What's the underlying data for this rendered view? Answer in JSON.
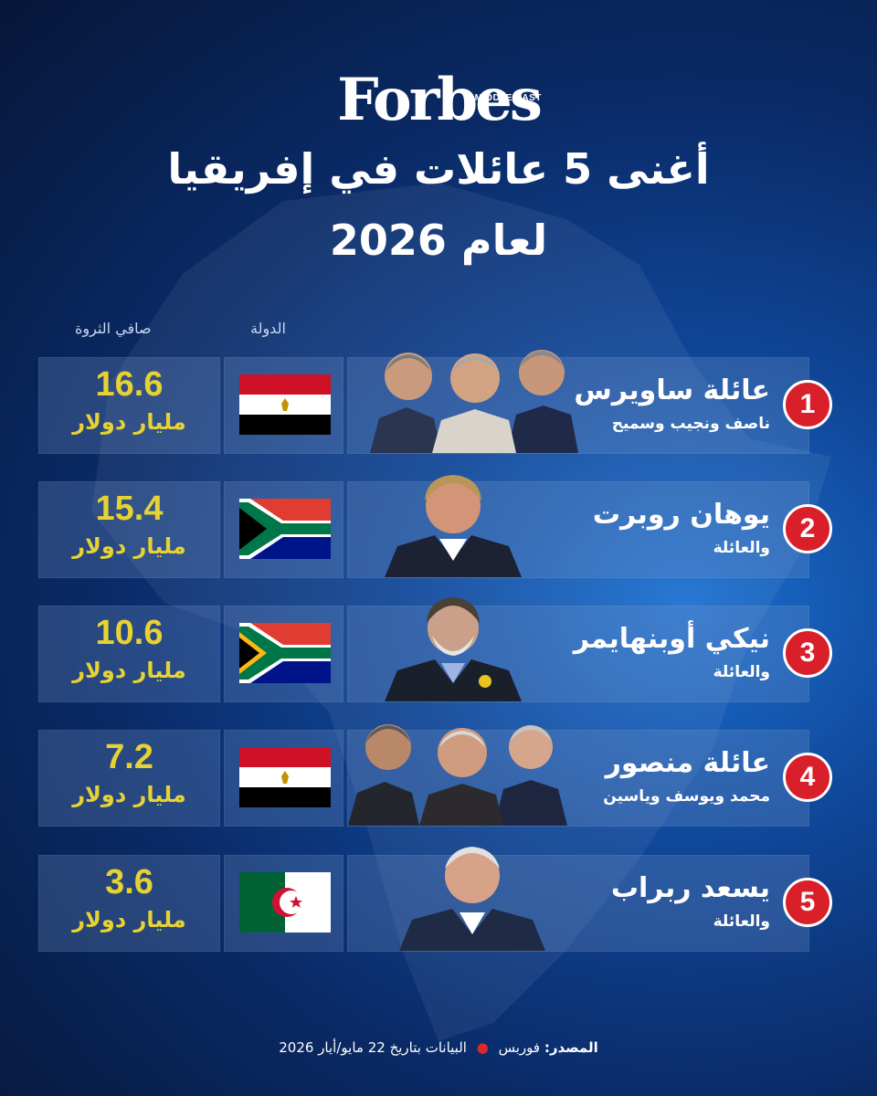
{
  "brand": {
    "logo_text": "Forbes",
    "logo_sub": "MIDDLE EAST"
  },
  "title": {
    "line1": "أغنى 5 عائلات في إفريقيا",
    "line2": "لعام 2026"
  },
  "columns": {
    "country": "الدولة",
    "net_worth": "صافي الثروة"
  },
  "rows": [
    {
      "rank": "1",
      "family": "عائلة ساويرس",
      "members": "ناصف ونجيب وسميح",
      "country": "Egypt",
      "net_worth": "16.6",
      "unit": "مليار دولار"
    },
    {
      "rank": "2",
      "family": "يوهان روبرت",
      "members": "والعائلة",
      "country": "South Africa",
      "net_worth": "15.4",
      "unit": "مليار دولار"
    },
    {
      "rank": "3",
      "family": "نيكي أوبنهايمر",
      "members": "والعائلة",
      "country": "South Africa",
      "net_worth": "10.6",
      "unit": "مليار دولار"
    },
    {
      "rank": "4",
      "family": "عائلة منصور",
      "members": "محمد ويوسف وياسين",
      "country": "Egypt",
      "net_worth": "7.2",
      "unit": "مليار دولار"
    },
    {
      "rank": "5",
      "family": "يسعد ربراب",
      "members": "والعائلة",
      "country": "Algeria",
      "net_worth": "3.6",
      "unit": "مليار دولار"
    }
  ],
  "footer": {
    "source_label": "المصدر:",
    "source": "فوربس",
    "date_text": "البيانات بتاريخ 22 مايو/أيار 2026"
  },
  "colors": {
    "accent_yellow": "#e6d232",
    "rank_red": "#d9202a",
    "bg_dark": "#061638",
    "bg_light": "#1a6fd0"
  }
}
